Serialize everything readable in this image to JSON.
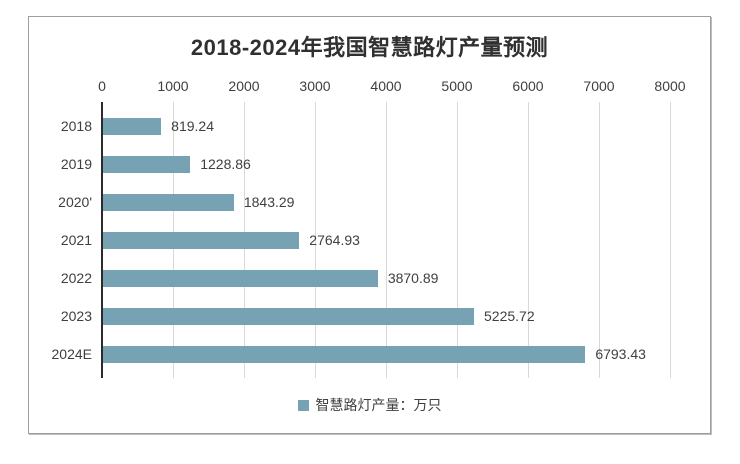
{
  "chart_data": {
    "type": "bar",
    "orientation": "horizontal",
    "title": "2018-2024年我国智慧路灯产量预测",
    "categories": [
      "2018",
      "2019",
      "2020'",
      "2021",
      "2022",
      "2023",
      "2024E"
    ],
    "values": [
      819.24,
      1228.86,
      1843.29,
      2764.93,
      3870.89,
      5225.72,
      6793.43
    ],
    "value_labels": [
      "819.24",
      "1228.86",
      "1843.29",
      "2764.93",
      "3870.89",
      "5225.72",
      "6793.43"
    ],
    "xlim": [
      0,
      8000
    ],
    "x_ticks": [
      "0",
      "1000",
      "2000",
      "3000",
      "4000",
      "5000",
      "6000",
      "7000",
      "8000"
    ],
    "grid": true,
    "legend": {
      "label": "智慧路灯产量：万只",
      "position": "bottom",
      "marker": "square"
    },
    "colors": {
      "bar": "#76a2b3",
      "gridline": "#d9d9d9",
      "axis_line": "#2b2b2b",
      "text": "#3f3f3f",
      "title": "#303030",
      "frame_border": "#9e9e9e"
    }
  }
}
